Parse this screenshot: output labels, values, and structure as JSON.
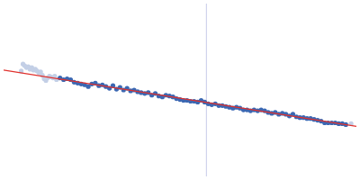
{
  "chart_data": {
    "type": "scatter",
    "tick_labels": false,
    "grid": false,
    "xlim": [
      0,
      400
    ],
    "ylim": [
      0,
      200
    ],
    "series": [
      {
        "type": "line",
        "line_style": "solid",
        "color": "#d0d4ec",
        "x": [
          230,
          230
        ],
        "values": [
          0,
          200
        ]
      },
      {
        "type": "scatter",
        "marker": "circle",
        "color": "#c3cfe6",
        "x": [
          20,
          22,
          24,
          26,
          28,
          30,
          32,
          34,
          36,
          38,
          40,
          42,
          44,
          46,
          48,
          50,
          52,
          54,
          56,
          58,
          60,
          394
        ],
        "values": [
          122,
          130,
          128,
          126,
          127,
          124,
          126,
          123,
          124,
          122,
          120,
          121,
          117,
          113,
          111,
          114,
          116,
          115,
          114,
          116,
          112,
          61
        ]
      },
      {
        "type": "scatter",
        "marker": "circle",
        "color": "#3b67b2",
        "x": [
          64,
          68,
          72,
          76,
          80,
          84,
          88,
          92,
          96,
          100,
          104,
          108,
          112,
          116,
          120,
          124,
          128,
          132,
          136,
          140,
          144,
          148,
          152,
          156,
          160,
          164,
          168,
          172,
          176,
          180,
          184,
          188,
          192,
          196,
          200,
          204,
          208,
          212,
          216,
          220,
          224,
          228,
          232,
          236,
          240,
          244,
          248,
          252,
          256,
          260,
          264,
          268,
          272,
          276,
          280,
          284,
          288,
          292,
          296,
          300,
          304,
          308,
          312,
          316,
          320,
          324,
          328,
          332,
          336,
          340,
          344,
          348,
          352,
          356,
          360,
          364,
          368,
          372,
          376,
          380,
          384,
          388
        ],
        "values": [
          114,
          112,
          113,
          112,
          109,
          108,
          107,
          106,
          104,
          107,
          108,
          105,
          106,
          104,
          102,
          105,
          101,
          103,
          100,
          102,
          99,
          100,
          98,
          97,
          96,
          97,
          94,
          96,
          93,
          92,
          94,
          93,
          92,
          90,
          89,
          88,
          88,
          87,
          87,
          86,
          88,
          86,
          84,
          83,
          84,
          82,
          82,
          81,
          80,
          79,
          80,
          79,
          77,
          77,
          76,
          77,
          76,
          77,
          76,
          74,
          73,
          74,
          72,
          73,
          72,
          70,
          72,
          69,
          68,
          68,
          67,
          67,
          66,
          65,
          64,
          62,
          62,
          62,
          62,
          61,
          61,
          60
        ]
      },
      {
        "type": "line",
        "line_style": "solid",
        "color": "#e0312d",
        "x": [
          0,
          400
        ],
        "values": [
          123,
          58
        ]
      }
    ]
  }
}
